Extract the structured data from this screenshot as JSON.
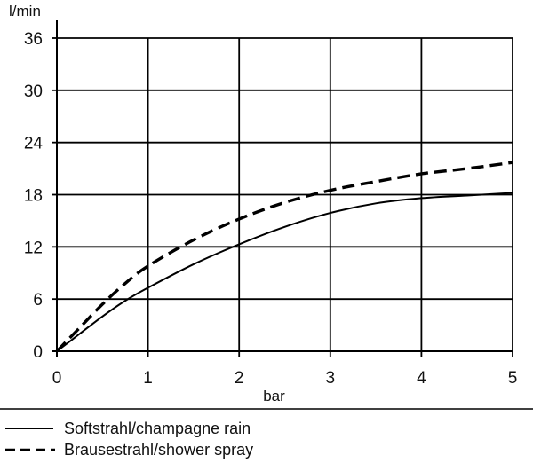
{
  "chart_data": {
    "type": "line",
    "xlabel": "bar",
    "ylabel": "l/min",
    "xlim": [
      0,
      5
    ],
    "ylim": [
      0,
      36
    ],
    "x_ticks": [
      "0",
      "1",
      "2",
      "3",
      "4",
      "5"
    ],
    "y_ticks": [
      "0",
      "6",
      "12",
      "18",
      "24",
      "30",
      "36"
    ],
    "grid": true,
    "legend_position": "bottom",
    "series": [
      {
        "name": "Softstrahl/champagne rain",
        "style": "solid",
        "x": [
          0,
          0.25,
          0.5,
          0.75,
          1.0,
          1.5,
          2.0,
          2.5,
          3.0,
          3.5,
          4.0,
          4.5,
          5.0
        ],
        "y": [
          0,
          2.0,
          4.0,
          5.8,
          7.3,
          10.0,
          12.3,
          14.3,
          15.9,
          17.0,
          17.6,
          17.9,
          18.2
        ]
      },
      {
        "name": "Brausestrahl/shower spray",
        "style": "dashed",
        "x": [
          0,
          0.25,
          0.5,
          0.75,
          1.0,
          1.5,
          2.0,
          2.5,
          3.0,
          3.5,
          4.0,
          4.5,
          5.0
        ],
        "y": [
          0,
          2.7,
          5.4,
          7.8,
          9.8,
          12.8,
          15.2,
          17.1,
          18.5,
          19.5,
          20.4,
          21.0,
          21.7
        ]
      }
    ]
  }
}
